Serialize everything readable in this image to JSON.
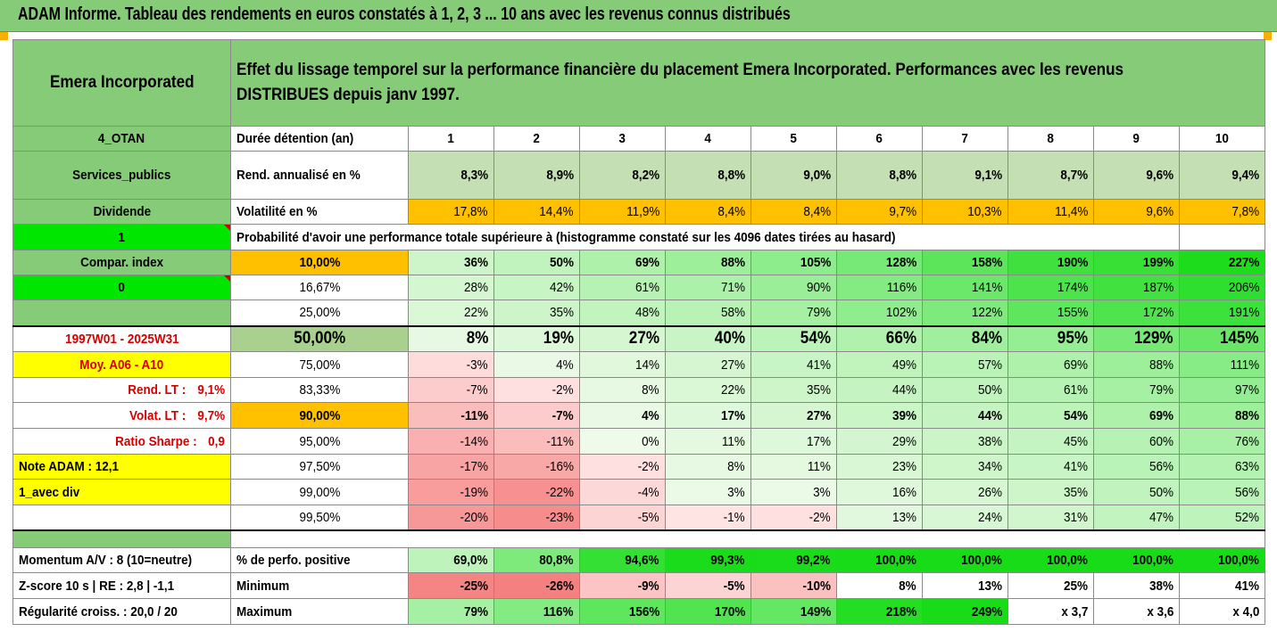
{
  "title": "ADAM Informe. Tableau des rendements en euros constatés à 1, 2, 3 ... 10 ans avec les revenus connus distribués",
  "fund_name": "Emera Incorporated",
  "description": "Effet du lissage temporel sur la performance financière du placement Emera Incorporated. Performances avec les revenus DISTRIBUES depuis janv 1997.",
  "left_panel": {
    "code": "4_OTAN",
    "sector": "Services_publics",
    "type": "Dividende",
    "flag1": "1",
    "compar": "Compar. index",
    "flag0": "0",
    "period": "1997W01 - 2025W31",
    "moy": "Moy. A06 - A10",
    "rend_lt_label": "Rend. LT :",
    "rend_lt_value": "9,1%",
    "volat_lt_label": "Volat. LT :",
    "volat_lt_value": "9,7%",
    "sharpe_label": "Ratio Sharpe :",
    "sharpe_value": "0,9",
    "note": "Note ADAM : 12,1",
    "mode": "1_avec div",
    "momentum": "Momentum A/V : 8 (10=neutre)",
    "zscore": "Z-score 10 s  |  RE : 2,8  |  -1,1",
    "regularite": "Régularité croiss. : 20,0 / 20"
  },
  "labels": {
    "duree": "Durée détention (an)",
    "rend": "Rend. annualisé en %",
    "vol": "Volatilité en %",
    "proba": "Probabilité d'avoir une performance totale supérieure à (histogramme constaté sur les 4096 dates tirées au hasard)",
    "pos": "% de perfo. positive",
    "min": "Minimum",
    "max": "Maximum"
  },
  "years": [
    "1",
    "2",
    "3",
    "4",
    "5",
    "6",
    "7",
    "8",
    "9",
    "10"
  ],
  "rend": [
    "8,3%",
    "8,9%",
    "8,2%",
    "8,8%",
    "9,0%",
    "8,8%",
    "9,1%",
    "8,7%",
    "9,6%",
    "9,4%"
  ],
  "vol": [
    "17,8%",
    "14,4%",
    "11,9%",
    "8,4%",
    "8,4%",
    "9,7%",
    "10,3%",
    "11,4%",
    "9,6%",
    "7,8%"
  ],
  "percentiles": [
    {
      "p": "10,00%",
      "v": [
        "36%",
        "50%",
        "69%",
        "88%",
        "105%",
        "128%",
        "158%",
        "190%",
        "199%",
        "227%"
      ]
    },
    {
      "p": "16,67%",
      "v": [
        "28%",
        "42%",
        "61%",
        "71%",
        "90%",
        "116%",
        "141%",
        "174%",
        "187%",
        "206%"
      ]
    },
    {
      "p": "25,00%",
      "v": [
        "22%",
        "35%",
        "48%",
        "58%",
        "79%",
        "102%",
        "122%",
        "155%",
        "172%",
        "191%"
      ]
    },
    {
      "p": "50,00%",
      "v": [
        "8%",
        "19%",
        "27%",
        "40%",
        "54%",
        "66%",
        "84%",
        "95%",
        "129%",
        "145%"
      ]
    },
    {
      "p": "75,00%",
      "v": [
        "-3%",
        "4%",
        "14%",
        "27%",
        "41%",
        "49%",
        "57%",
        "69%",
        "88%",
        "111%"
      ]
    },
    {
      "p": "83,33%",
      "v": [
        "-7%",
        "-2%",
        "8%",
        "22%",
        "35%",
        "44%",
        "50%",
        "61%",
        "79%",
        "97%"
      ]
    },
    {
      "p": "90,00%",
      "v": [
        "-11%",
        "-7%",
        "4%",
        "17%",
        "27%",
        "39%",
        "44%",
        "54%",
        "69%",
        "88%"
      ]
    },
    {
      "p": "95,00%",
      "v": [
        "-14%",
        "-11%",
        "0%",
        "11%",
        "17%",
        "29%",
        "38%",
        "45%",
        "60%",
        "76%"
      ]
    },
    {
      "p": "97,50%",
      "v": [
        "-17%",
        "-16%",
        "-2%",
        "8%",
        "11%",
        "23%",
        "34%",
        "41%",
        "56%",
        "63%"
      ]
    },
    {
      "p": "99,00%",
      "v": [
        "-19%",
        "-22%",
        "-4%",
        "3%",
        "3%",
        "16%",
        "26%",
        "35%",
        "50%",
        "56%"
      ]
    },
    {
      "p": "99,50%",
      "v": [
        "-20%",
        "-23%",
        "-5%",
        "-1%",
        "-2%",
        "13%",
        "24%",
        "31%",
        "47%",
        "52%"
      ]
    }
  ],
  "pos": [
    "69,0%",
    "80,8%",
    "94,6%",
    "99,3%",
    "99,2%",
    "100,0%",
    "100,0%",
    "100,0%",
    "100,0%",
    "100,0%"
  ],
  "min": [
    "-25%",
    "-26%",
    "-9%",
    "-5%",
    "-10%",
    "8%",
    "13%",
    "25%",
    "38%",
    "41%"
  ],
  "max": [
    "79%",
    "116%",
    "156%",
    "170%",
    "149%",
    "218%",
    "249%",
    "x 3,7",
    "x 3,6",
    "x 4,0"
  ],
  "colors": {
    "header_green": "#86cc78",
    "rend_green": "#c4dfb4",
    "vol_orange": "#ffc000",
    "bright_green": "#00e600",
    "yellow": "#ffff00",
    "mid_green": "#a9d08e",
    "red_text": "#d40000"
  }
}
